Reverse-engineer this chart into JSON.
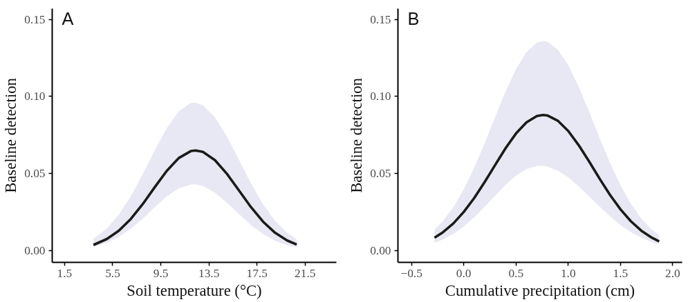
{
  "chart_data": [
    {
      "type": "line",
      "xlabel": "Soil temperature (°C)",
      "ylabel": "Baseline detection",
      "annotations": [
        "A"
      ],
      "x": [
        3.9,
        5,
        6,
        7,
        8,
        9,
        10,
        11,
        12,
        12.4,
        13,
        14,
        15,
        16,
        17,
        18,
        19,
        20,
        20.8
      ],
      "series": [
        {
          "color": "#1a1a1a",
          "values": [
            0.0037,
            0.0075,
            0.0129,
            0.0205,
            0.0302,
            0.0412,
            0.0518,
            0.0601,
            0.0646,
            0.065,
            0.0641,
            0.0587,
            0.0498,
            0.039,
            0.0282,
            0.0188,
            0.0116,
            0.0066,
            0.004
          ],
          "lower": [
            0.0025,
            0.005,
            0.0088,
            0.0141,
            0.0207,
            0.0282,
            0.0352,
            0.0405,
            0.0429,
            0.0429,
            0.0419,
            0.0376,
            0.0311,
            0.0237,
            0.0166,
            0.0107,
            0.0064,
            0.0035,
            0.002
          ],
          "upper": [
            0.0077,
            0.0143,
            0.0233,
            0.0352,
            0.0496,
            0.0651,
            0.0795,
            0.0904,
            0.0959,
            0.096,
            0.0943,
            0.0866,
            0.074,
            0.0589,
            0.0436,
            0.0301,
            0.0193,
            0.0116,
            0.0073
          ]
        }
      ],
      "xlim": [
        0.47,
        24.1
      ],
      "ylim": [
        -0.0076,
        0.157
      ],
      "xticks": [
        1.5,
        5.5,
        9.5,
        13.5,
        17.5,
        21.5
      ],
      "yticks": [
        {
          "value": 0,
          "label": "0.00"
        },
        {
          "value": 0.05,
          "label": "0.05"
        },
        {
          "value": 0.1,
          "label": "0.10"
        },
        {
          "value": 0.15,
          "label": "0.15"
        }
      ],
      "grid": false
    },
    {
      "type": "line",
      "xlabel": "Cumulative precipitation (cm)",
      "ylabel": "Baseline detection",
      "annotations": [
        "B"
      ],
      "x": [
        -0.28,
        -0.2,
        -0.1,
        0,
        0.1,
        0.2,
        0.3,
        0.4,
        0.5,
        0.6,
        0.7,
        0.76,
        0.8,
        0.9,
        1.0,
        1.1,
        1.2,
        1.3,
        1.4,
        1.5,
        1.6,
        1.7,
        1.8,
        1.87
      ],
      "series": [
        {
          "color": "#1a1a1a",
          "values": [
            0.0084,
            0.0119,
            0.0176,
            0.0251,
            0.0341,
            0.0445,
            0.0555,
            0.0664,
            0.076,
            0.0832,
            0.0873,
            0.088,
            0.0877,
            0.0843,
            0.0776,
            0.0684,
            0.0578,
            0.0467,
            0.0361,
            0.0268,
            0.019,
            0.0129,
            0.0084,
            0.006
          ],
          "lower": [
            0.005,
            0.0072,
            0.0109,
            0.0157,
            0.0216,
            0.0284,
            0.0356,
            0.0426,
            0.0486,
            0.0529,
            0.0549,
            0.055,
            0.0545,
            0.0519,
            0.0475,
            0.0417,
            0.0352,
            0.0286,
            0.0222,
            0.0166,
            0.012,
            0.0083,
            0.0055,
            0.004
          ],
          "upper": [
            0.0136,
            0.0191,
            0.0282,
            0.0398,
            0.0538,
            0.0698,
            0.0867,
            0.1032,
            0.1178,
            0.1288,
            0.135,
            0.136,
            0.1355,
            0.1304,
            0.1203,
            0.1063,
            0.0901,
            0.0731,
            0.0569,
            0.0424,
            0.0303,
            0.0208,
            0.0136,
            0.0099
          ]
        }
      ],
      "xlim": [
        -0.63,
        2.09
      ],
      "ylim": [
        -0.0076,
        0.157
      ],
      "xticks": [
        {
          "value": -0.5,
          "label": "−0.5"
        },
        {
          "value": 0,
          "label": "0.0"
        },
        {
          "value": 0.5,
          "label": "0.5"
        },
        {
          "value": 1,
          "label": "1.0"
        },
        {
          "value": 1.5,
          "label": "1.5"
        },
        {
          "value": 2,
          "label": "2.0"
        }
      ],
      "yticks": [
        {
          "value": 0,
          "label": "0.00"
        },
        {
          "value": 0.05,
          "label": "0.05"
        },
        {
          "value": 0.1,
          "label": "0.10"
        },
        {
          "value": 0.15,
          "label": "0.15"
        }
      ],
      "grid": false
    }
  ]
}
